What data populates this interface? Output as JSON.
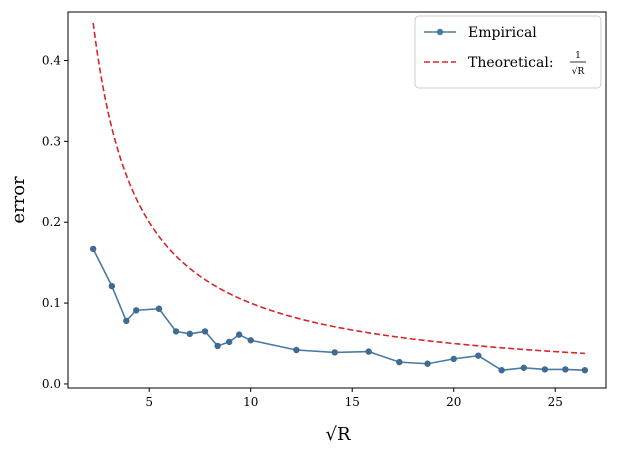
{
  "chart_data": {
    "type": "line",
    "xlabel": "√R",
    "ylabel": "error",
    "xlim": [
      1.0,
      27.5
    ],
    "ylim": [
      -0.005,
      0.46
    ],
    "xticks": [
      5,
      10,
      15,
      20,
      25
    ],
    "yticks": [
      0.0,
      0.1,
      0.2,
      0.3,
      0.4
    ],
    "xtick_labels": [
      "5",
      "10",
      "15",
      "20",
      "25"
    ],
    "ytick_labels": [
      "0.0",
      "0.1",
      "0.2",
      "0.3",
      "0.4"
    ],
    "grid": false,
    "legend_position": "top-right",
    "series": [
      {
        "name": "Empirical",
        "style": "line-with-markers",
        "color": "#4a7aa4",
        "x": [
          2.24,
          3.16,
          3.87,
          4.36,
          5.48,
          6.32,
          7.0,
          7.75,
          8.37,
          8.94,
          9.43,
          10.0,
          12.25,
          14.14,
          15.81,
          17.32,
          18.71,
          20.0,
          21.21,
          22.36,
          23.45,
          24.49,
          25.5,
          26.46
        ],
        "y": [
          0.167,
          0.121,
          0.078,
          0.091,
          0.093,
          0.065,
          0.062,
          0.065,
          0.047,
          0.052,
          0.061,
          0.054,
          0.042,
          0.039,
          0.04,
          0.027,
          0.025,
          0.031,
          0.035,
          0.017,
          0.02,
          0.018,
          0.018,
          0.017
        ]
      },
      {
        "name": "Theoretical:",
        "formula": "1/√R",
        "style": "dashed",
        "color": "#d62728",
        "x_start": 2.24,
        "x_end": 26.46
      }
    ]
  }
}
